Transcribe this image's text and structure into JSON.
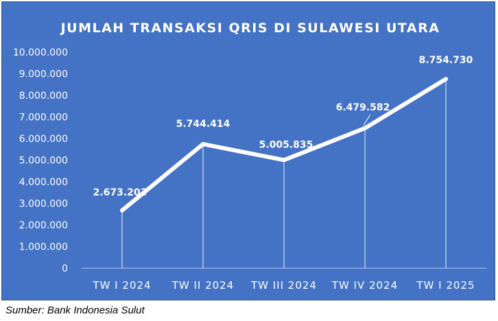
{
  "source_note": "Sumber: Bank Indonesia Sulut",
  "colors": {
    "background": "#4472c4",
    "line": "#ffffff",
    "text": "#ffffff"
  },
  "chart_data": {
    "type": "line",
    "title": "JUMLAH TRANSAKSI QRIS DI SULAWESI UTARA",
    "xlabel": "",
    "ylabel": "",
    "categories": [
      "TW I 2024",
      "TW II 2024",
      "TW III 2024",
      "TW IV 2024",
      "TW I 2025"
    ],
    "series": [
      {
        "values": [
          2673203,
          5744414,
          5005835,
          6479582,
          8754730
        ],
        "labels": [
          "2.673.203",
          "5.744.414",
          "5.005.835",
          "6.479.582",
          "8.754.730"
        ]
      }
    ],
    "y_ticks": [
      0,
      1000000,
      2000000,
      3000000,
      4000000,
      5000000,
      6000000,
      7000000,
      8000000,
      9000000,
      10000000
    ],
    "y_tick_labels": [
      "0",
      "1.000.000",
      "2.000.000",
      "3.000.000",
      "4.000.000",
      "5.000.000",
      "6.000.000",
      "7.000.000",
      "8.000.000",
      "9.000.000",
      "10.000.000"
    ],
    "ylim": [
      0,
      10000000
    ],
    "grid": false,
    "drop_lines": true,
    "legend": "none"
  }
}
